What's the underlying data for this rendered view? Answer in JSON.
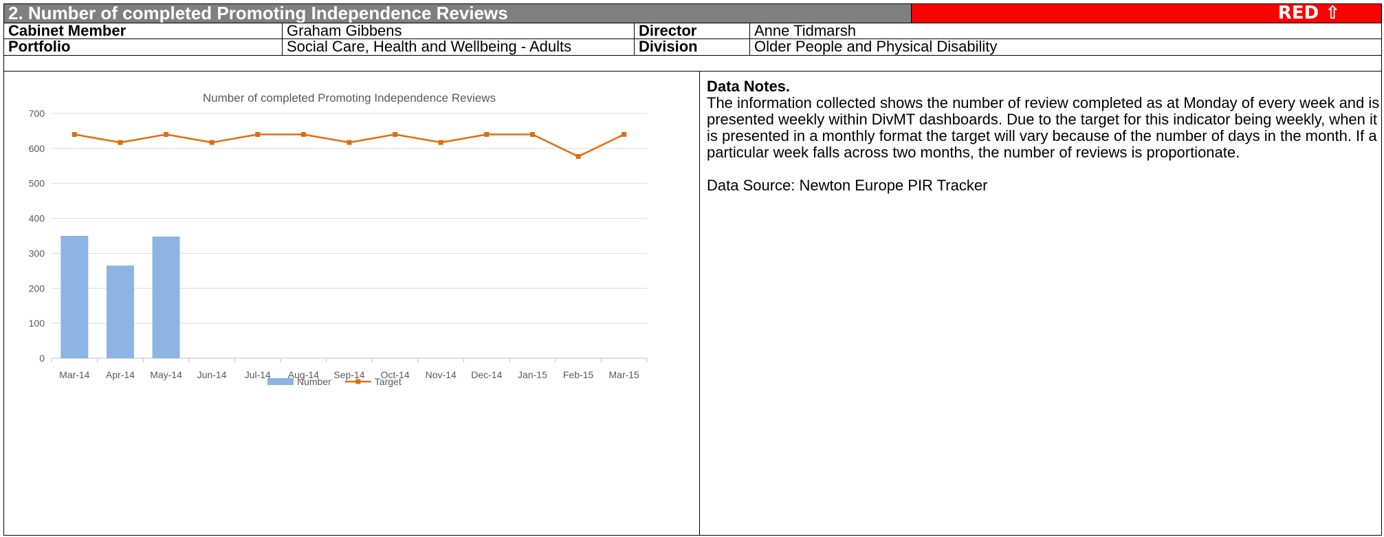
{
  "header": {
    "title": "2. Number of completed Promoting Independence Reviews",
    "status": "RED ⇧"
  },
  "table": {
    "rows": [
      [
        "Cabinet Member",
        "Graham Gibbens",
        "Director",
        "Anne Tidmarsh"
      ],
      [
        "Portfolio",
        "Social Care, Health and Wellbeing - Adults",
        "Division",
        "Older People and Physical Disability"
      ]
    ]
  },
  "chart_data": {
    "type": "bar",
    "title": "Number of completed Promoting Independence Reviews",
    "categories": [
      "Mar-14",
      "Apr-14",
      "May-14",
      "Jun-14",
      "Jul-14",
      "Aug-14",
      "Sep-14",
      "Oct-14",
      "Nov-14",
      "Dec-14",
      "Jan-15",
      "Feb-15",
      "Mar-15"
    ],
    "series": [
      {
        "name": "Number",
        "type": "bar",
        "color": "#8db4e2",
        "values": [
          350,
          265,
          348,
          null,
          null,
          null,
          null,
          null,
          null,
          null,
          null,
          null,
          null
        ]
      },
      {
        "name": "Target",
        "type": "line",
        "color": "#e46c0a",
        "values": [
          640,
          617,
          640,
          617,
          640,
          640,
          617,
          640,
          617,
          640,
          640,
          577,
          640
        ]
      }
    ],
    "ylim": [
      0,
      700
    ],
    "yticks": [
      0,
      100,
      200,
      300,
      400,
      500,
      600,
      700
    ],
    "grid": true,
    "legend": "bottom"
  },
  "notes": {
    "heading": "Data Notes.",
    "body": "The information collected shows the number of review completed as at Monday of every week and is presented weekly within DivMT dashboards. Due to the target for this indicator being weekly, when it is presented in a monthly format the target will vary because of the number of days in the month.  If a particular week falls across two months, the number of reviews is proportionate.",
    "source": "Data Source:  Newton Europe PIR Tracker"
  }
}
